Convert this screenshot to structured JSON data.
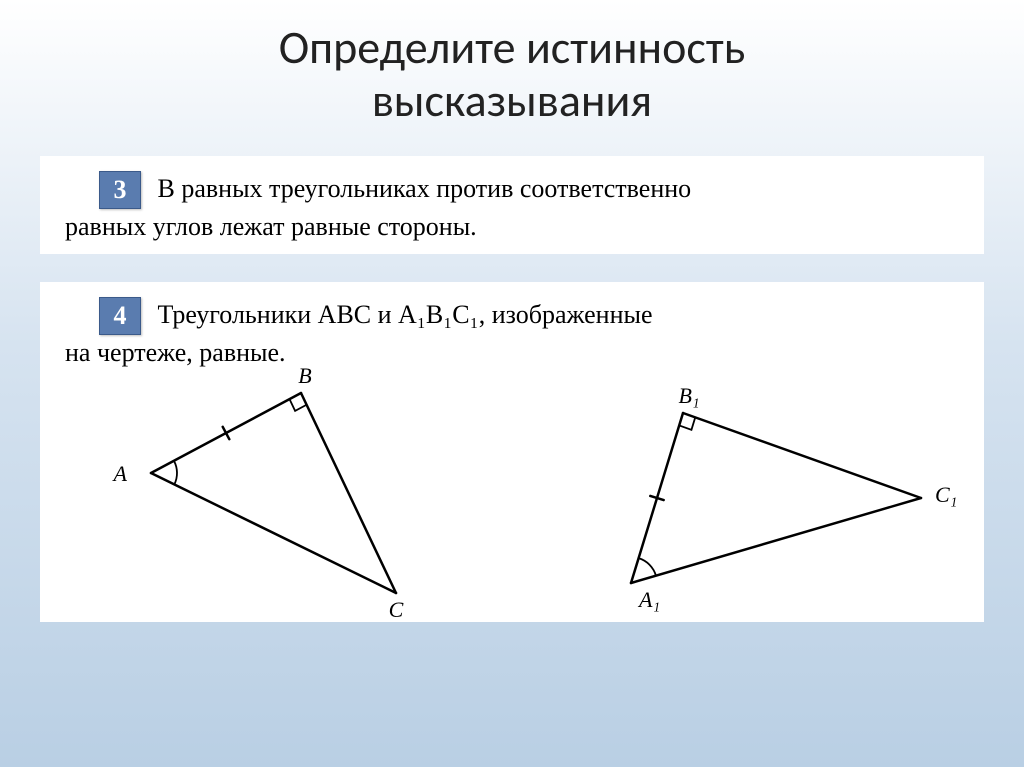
{
  "title_line1": "Определите истинность",
  "title_line2": "высказывания",
  "card3": {
    "badge": "3",
    "text_first": "В равных треугольниках против соответственно",
    "text_second": "равных  углов  лежат  равные  стороны."
  },
  "card4": {
    "badge": "4",
    "text_first": "Треугольники  ABC  и  A₁B₁C₁,  изображенные",
    "text_second": "на  чертеже,  равные."
  },
  "labels": {
    "A": "A",
    "B": "B",
    "C": "C",
    "A1": "A₁",
    "B1": "B₁",
    "C1": "C₁"
  },
  "style": {
    "title_fontsize": 46,
    "title_color": "#222222",
    "badge_bg": "#5a7caf",
    "badge_fg": "#ffffff",
    "card_bg": "#ffffff",
    "body_font": "Times New Roman, serif",
    "body_fontsize": 26,
    "gradient_top": "#ffffff",
    "gradient_mid": "#d6e3f0",
    "gradient_bot": "#b9cfe4",
    "stroke_color": "#000000",
    "stroke_width": 2.5,
    "label_fontsize": 22,
    "label_font": "Times New Roman, serif"
  },
  "triangle1": {
    "A": [
      110,
      105
    ],
    "B": [
      260,
      25
    ],
    "C": [
      355,
      225
    ],
    "tick_on": "AB",
    "right_angle_at": "B",
    "angle_arc_at": "A"
  },
  "triangle2": {
    "A1": [
      590,
      215
    ],
    "B1": [
      642,
      45
    ],
    "C1": [
      880,
      130
    ],
    "tick_on": "A1B1",
    "right_angle_at": "B1",
    "angle_arc_at": "A1"
  }
}
